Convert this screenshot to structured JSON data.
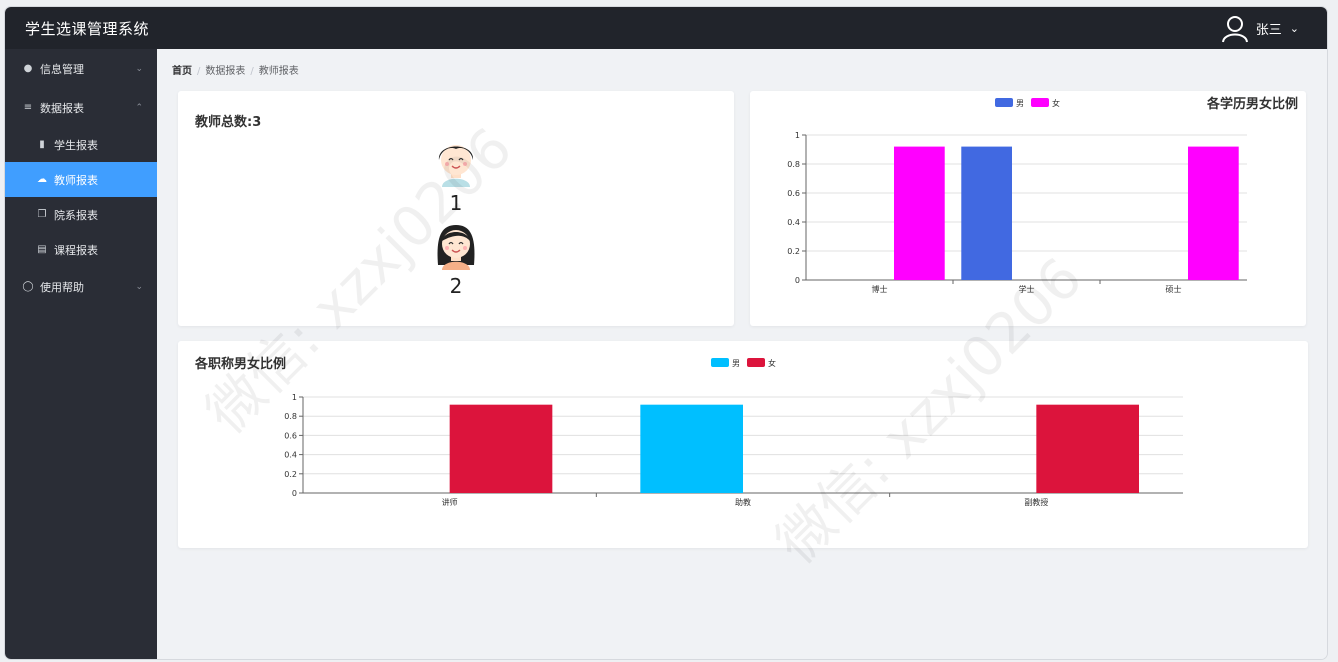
{
  "header": {
    "app_title": "学生选课管理系统",
    "user_name": "张三"
  },
  "sidebar": {
    "groups": [
      {
        "label": "信息管理",
        "icon": "info-circle-icon",
        "expanded": false
      },
      {
        "label": "数据报表",
        "icon": "sliders-icon",
        "expanded": true,
        "items": [
          {
            "label": "学生报表",
            "icon": "bar-chart-icon",
            "active": false
          },
          {
            "label": "教师报表",
            "icon": "cloud-icon",
            "active": true
          },
          {
            "label": "院系报表",
            "icon": "copy-document-icon",
            "active": false
          },
          {
            "label": "课程报表",
            "icon": "document-icon",
            "active": false
          }
        ]
      },
      {
        "label": "使用帮助",
        "icon": "help-circle-icon",
        "expanded": false
      }
    ]
  },
  "breadcrumb": [
    "首页",
    "数据报表",
    "教师报表"
  ],
  "teacher_summary": {
    "title": "教师总数:3",
    "groups": [
      {
        "icon": "male-avatar-icon",
        "count": "1"
      },
      {
        "icon": "female-avatar-icon",
        "count": "2"
      }
    ]
  },
  "chart_data": [
    {
      "type": "bar",
      "title": "各学历男女比例",
      "categories": [
        "博士",
        "学士",
        "硕士"
      ],
      "series": [
        {
          "name": "男",
          "color": "#4169e1",
          "values": [
            0,
            1,
            0
          ]
        },
        {
          "name": "女",
          "color": "#ff00ff",
          "values": [
            1,
            0,
            1
          ]
        }
      ],
      "ylim": [
        0,
        1
      ],
      "yticks": [
        "0",
        "0.2",
        "0.4",
        "0.6",
        "0.8",
        "1"
      ],
      "legend": "top-center",
      "grid": true
    },
    {
      "type": "bar",
      "title": "各职称男女比例",
      "categories": [
        "讲师",
        "助教",
        "副教授"
      ],
      "series": [
        {
          "name": "男",
          "color": "#00bfff",
          "values": [
            0,
            1,
            0
          ]
        },
        {
          "name": "女",
          "color": "#dc143c",
          "values": [
            1,
            0,
            1
          ]
        }
      ],
      "ylim": [
        0,
        1
      ],
      "yticks": [
        "0",
        "0.2",
        "0.4",
        "0.6",
        "0.8",
        "1"
      ],
      "legend": "top-center",
      "grid": true
    }
  ],
  "watermark": "微信: xzxj0206"
}
